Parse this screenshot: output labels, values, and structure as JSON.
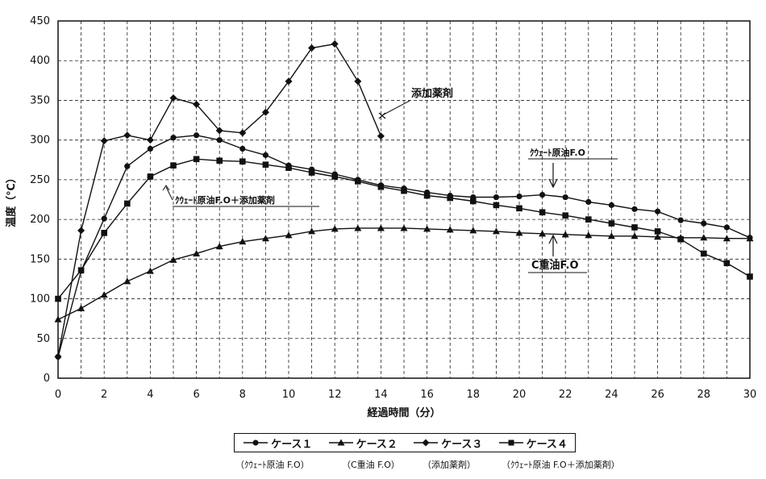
{
  "chart_data": {
    "type": "line",
    "xlabel": "経過時間（分）",
    "ylabel": "温度（℃）",
    "xlim": [
      0,
      30
    ],
    "ylim": [
      0,
      450
    ],
    "xticks": [
      "0",
      "2",
      "4",
      "6",
      "8",
      "10",
      "12",
      "14",
      "16",
      "18",
      "20",
      "22",
      "24",
      "26",
      "28",
      "30"
    ],
    "yticks": [
      "0",
      "50",
      "100",
      "150",
      "200",
      "250",
      "300",
      "350",
      "400",
      "450"
    ],
    "grid": true,
    "legend_position": "bottom",
    "series": [
      {
        "name": "ケース１",
        "marker": "circle",
        "x": [
          0,
          1,
          2,
          3,
          4,
          5,
          6,
          7,
          8,
          9,
          10,
          11,
          12,
          13,
          14,
          15,
          16,
          17,
          18,
          19,
          20,
          21,
          22,
          23,
          24,
          25,
          26,
          27,
          28,
          29,
          30
        ],
        "values": [
          27,
          135,
          201,
          267,
          289,
          303,
          306,
          300,
          289,
          281,
          268,
          263,
          257,
          250,
          243,
          239,
          234,
          230,
          228,
          228,
          229,
          231,
          228,
          222,
          218,
          213,
          210,
          199,
          195,
          190,
          177
        ]
      },
      {
        "name": "ケース２",
        "marker": "triangle",
        "x": [
          0,
          1,
          2,
          3,
          4,
          5,
          6,
          7,
          8,
          9,
          10,
          11,
          12,
          13,
          14,
          15,
          16,
          17,
          18,
          19,
          20,
          21,
          22,
          23,
          24,
          25,
          26,
          27,
          28,
          29,
          30
        ],
        "values": [
          74,
          88,
          105,
          122,
          135,
          149,
          157,
          166,
          172,
          176,
          180,
          185,
          188,
          189,
          189,
          189,
          188,
          187,
          186,
          185,
          183,
          182,
          181,
          180,
          179,
          179,
          178,
          177,
          177,
          176,
          176
        ]
      },
      {
        "name": "ケース３",
        "marker": "diamond",
        "x": [
          0,
          1,
          2,
          3,
          4,
          5,
          6,
          7,
          8,
          9,
          10,
          11,
          12,
          13,
          14
        ],
        "values": [
          27,
          186,
          299,
          306,
          300,
          353,
          345,
          312,
          309,
          335,
          374,
          416,
          421,
          374,
          305
        ]
      },
      {
        "name": "ケース４",
        "marker": "square",
        "x": [
          0,
          1,
          2,
          3,
          4,
          5,
          6,
          7,
          8,
          9,
          10,
          11,
          12,
          13,
          14,
          15,
          16,
          17,
          18,
          19,
          20,
          21,
          22,
          23,
          24,
          25,
          26,
          27,
          28,
          29,
          30
        ],
        "values": [
          100,
          136,
          183,
          220,
          254,
          268,
          276,
          274,
          273,
          269,
          265,
          259,
          254,
          248,
          241,
          236,
          230,
          227,
          223,
          218,
          214,
          209,
          205,
          200,
          195,
          190,
          185,
          175,
          157,
          145,
          128
        ]
      }
    ],
    "annotations": {
      "additive": "添加薬剤",
      "kuwait_additive": "ｸｳｪｰﾄ原油F.O＋添加薬剤",
      "kuwait": "ｸｳｪｰﾄ原油F.O",
      "c_heavy": "C重油F.O"
    },
    "legend_notes": [
      "（ｸｳｪｰﾄ原油 F.O）",
      "（C重油 F.O）",
      "（添加薬剤）",
      "（ｸｳｪｰﾄ原油 F.O＋添加薬剤）"
    ]
  }
}
